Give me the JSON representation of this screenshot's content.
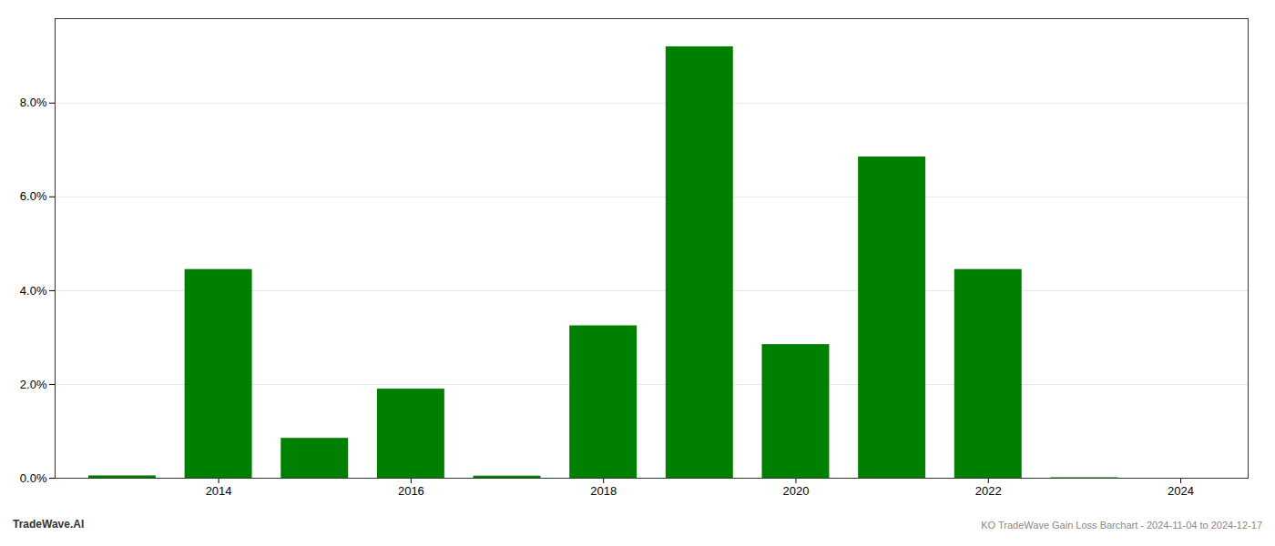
{
  "chart_data": {
    "type": "bar",
    "x": [
      2013,
      2014,
      2015,
      2016,
      2017,
      2018,
      2019,
      2020,
      2021,
      2022,
      2023
    ],
    "values": [
      0.0005,
      0.0445,
      0.0085,
      0.019,
      0.00045,
      0.0325,
      0.092,
      0.0285,
      0.0685,
      0.0445,
      0.0001
    ],
    "color": "#008000",
    "xlim": [
      2012.3,
      2024.7
    ],
    "xticks": [
      2014,
      2016,
      2018,
      2020,
      2022,
      2024
    ],
    "ylim": [
      0,
      0.098
    ],
    "yticks": [
      {
        "value": 0.0,
        "label": "0.0%"
      },
      {
        "value": 0.02,
        "label": "2.0%"
      },
      {
        "value": 0.04,
        "label": "4.0%"
      },
      {
        "value": 0.06,
        "label": "6.0%"
      },
      {
        "value": 0.08,
        "label": "8.0%"
      }
    ],
    "grid": true,
    "annotations": [
      "TradeWave.AI",
      "KO TradeWave Gain Loss Barchart - 2024-11-04 to 2024-12-17"
    ]
  }
}
